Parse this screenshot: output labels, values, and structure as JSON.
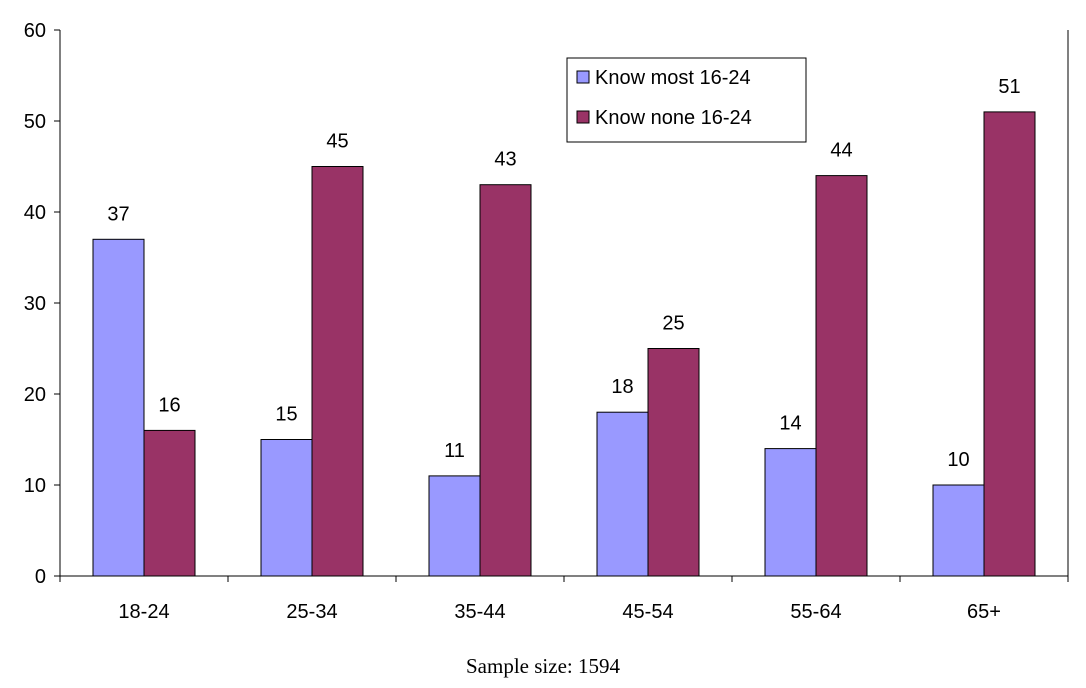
{
  "chart_data": {
    "type": "bar",
    "categories": [
      "18-24",
      "25-34",
      "35-44",
      "45-54",
      "55-64",
      "65+"
    ],
    "series": [
      {
        "name": "Know most 16-24",
        "values": [
          37,
          15,
          11,
          18,
          14,
          10
        ],
        "color": "#9999ff"
      },
      {
        "name": "Know none 16-24",
        "values": [
          16,
          45,
          43,
          25,
          44,
          51
        ],
        "color": "#993366"
      }
    ],
    "data_labels": [
      [
        "37",
        "15",
        "11",
        "18",
        "14",
        "10"
      ],
      [
        "16",
        "45",
        "43",
        "25",
        "44",
        "51"
      ]
    ],
    "ylim": [
      0,
      60
    ],
    "yticks": [
      0,
      10,
      20,
      30,
      40,
      50,
      60
    ],
    "grid": false,
    "legend_position": "top-right"
  },
  "footnote": "Sample size: 1594"
}
